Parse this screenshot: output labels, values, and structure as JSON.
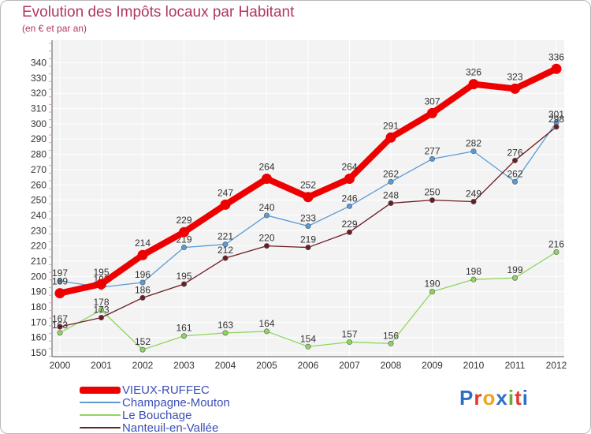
{
  "chart_data": {
    "type": "line",
    "title": "Evolution des Impôts locaux par Habitant",
    "subtitle": "(en € et par an)",
    "x": [
      "2000",
      "2001",
      "2002",
      "2003",
      "2004",
      "2005",
      "2006",
      "2007",
      "2008",
      "2009",
      "2010",
      "2011",
      "2012"
    ],
    "ylim": [
      150,
      340
    ],
    "yticks": [
      150,
      160,
      170,
      180,
      190,
      200,
      210,
      220,
      230,
      240,
      250,
      260,
      270,
      280,
      290,
      300,
      310,
      320,
      330,
      340
    ],
    "grid": true,
    "legend_position": "bottom-left",
    "series": [
      {
        "name": "VIEUX-RUFFEC",
        "color": "#ee0000",
        "values": [
          189,
          195,
          214,
          229,
          247,
          264,
          252,
          264,
          291,
          307,
          326,
          323,
          336
        ]
      },
      {
        "name": "Champagne-Mouton",
        "color": "#5b9bd5",
        "values": [
          197,
          193,
          196,
          219,
          221,
          240,
          233,
          246,
          262,
          277,
          282,
          262,
          301
        ]
      },
      {
        "name": "Le Bouchage",
        "color": "#8ed65e",
        "values": [
          163,
          178,
          152,
          161,
          163,
          164,
          154,
          157,
          156,
          190,
          198,
          199,
          216
        ]
      },
      {
        "name": "Nanteuil-en-Vallée",
        "color": "#6b1c24",
        "values": [
          167,
          173,
          186,
          195,
          212,
          220,
          219,
          229,
          248,
          250,
          249,
          276,
          298
        ]
      }
    ]
  },
  "brand": {
    "text": "Proxiti",
    "colors": [
      "#2e6fc4",
      "#e33b2b",
      "#f2a31c",
      "#2e6fc4",
      "#6aa83a",
      "#e33b2b",
      "#2e6fc4"
    ]
  }
}
